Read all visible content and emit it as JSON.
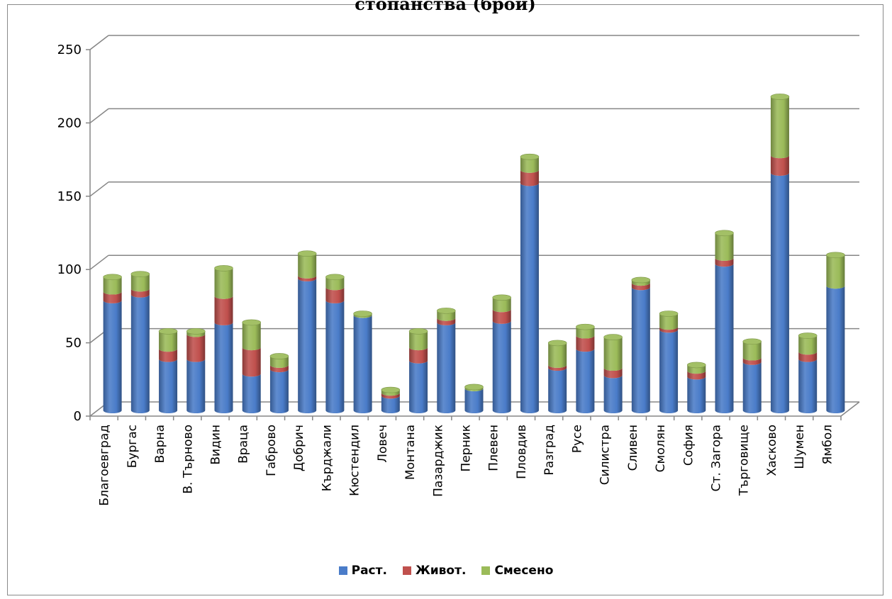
{
  "chart_data": {
    "type": "bar",
    "stacked": true,
    "title": "стопанства (брой)",
    "categories": [
      "Благоевград",
      "Бургас",
      "Варна",
      "В. Търново",
      "Видин",
      "Враца",
      "Габрово",
      "Добрич",
      "Кърджали",
      "Кюстендил",
      "Ловеч",
      "Монтана",
      "Пазарджик",
      "Перник",
      "Плевен",
      "Пловдив",
      "Разград",
      "Русе",
      "Силистра",
      "Сливен",
      "Смолян",
      "София",
      "Ст. Загора",
      "Търговище",
      "Хасково",
      "Шумен",
      "Ямбол"
    ],
    "series": [
      {
        "name": "Раст.",
        "color": "#4a7cc9",
        "values": [
          75,
          79,
          35,
          35,
          60,
          25,
          28,
          90,
          75,
          65,
          10,
          34,
          60,
          15,
          61,
          155,
          29,
          42,
          24,
          84,
          55,
          23,
          100,
          33,
          162,
          35,
          85
        ]
      },
      {
        "name": "Живот.",
        "color": "#c0504d",
        "values": [
          6,
          4,
          7,
          17,
          18,
          18,
          3,
          2,
          9,
          0,
          2,
          9,
          3,
          0,
          8,
          9,
          2,
          9,
          5,
          3,
          2,
          4,
          4,
          3,
          12,
          5,
          0
        ]
      },
      {
        "name": "Смесено",
        "color": "#9bbb59",
        "values": [
          10,
          10,
          12,
          2,
          19,
          17,
          6,
          15,
          7,
          1,
          2,
          11,
          5,
          1,
          8,
          9,
          15,
          6,
          21,
          2,
          9,
          4,
          17,
          11,
          40,
          11,
          21
        ]
      }
    ],
    "ylim": [
      0,
      250
    ],
    "yticks": [
      0,
      50,
      100,
      150,
      200,
      250
    ],
    "grid": true,
    "legend_position": "bottom"
  }
}
